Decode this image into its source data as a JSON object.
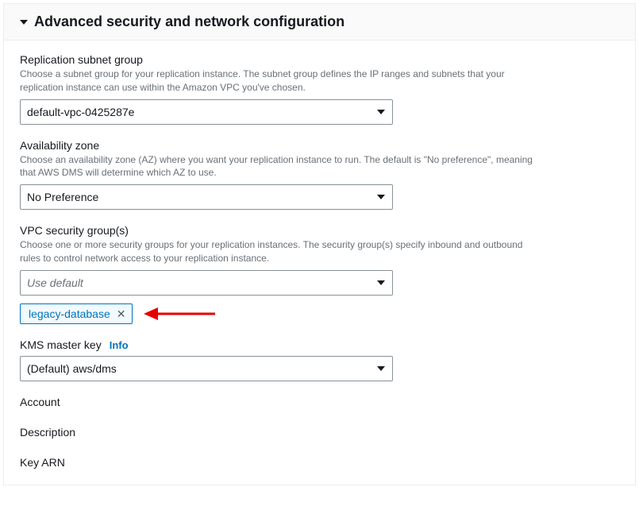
{
  "panel": {
    "title": "Advanced security and network configuration"
  },
  "subnetGroup": {
    "label": "Replication subnet group",
    "desc": "Choose a subnet group for your replication instance. The subnet group defines the IP ranges and subnets that your replication instance can use within the Amazon VPC you've chosen.",
    "value": "default-vpc-0425287e"
  },
  "az": {
    "label": "Availability zone",
    "desc": "Choose an availability zone (AZ) where you want your replication instance to run. The default is \"No preference\", meaning that AWS DMS will determine which AZ to use.",
    "value": "No Preference"
  },
  "sg": {
    "label": "VPC security group(s)",
    "desc": "Choose one or more security groups for your replication instances. The security group(s) specify inbound and outbound rules to control network access to your replication instance.",
    "placeholder": "Use default",
    "selectedTag": "legacy-database"
  },
  "kms": {
    "label": "KMS master key",
    "info": "Info",
    "value": "(Default) aws/dms"
  },
  "readonly": {
    "account": "Account",
    "description": "Description",
    "keyArn": "Key ARN"
  },
  "colors": {
    "accent": "#0073bb",
    "annotationArrow": "#e60000",
    "border": "#879196",
    "panelBorder": "#eaeded",
    "headerBg": "#fafafa",
    "descText": "#687078",
    "tagBg": "#f1faff"
  }
}
